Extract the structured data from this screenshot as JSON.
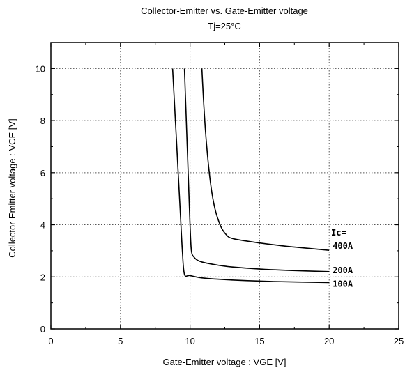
{
  "chart_data": {
    "type": "line",
    "title": "Collector-Emitter  vs.  Gate-Emitter  voltage",
    "subtitle": "Tj=25°C",
    "xlabel": "Gate-Emitter  voltage  :  VGE [V]",
    "ylabel": "Collector-Emitter  voltage  :  VCE [V]",
    "xlim": [
      0,
      25
    ],
    "ylim": [
      0,
      11
    ],
    "x_ticks": [
      "0",
      "5",
      "10",
      "15",
      "20",
      "25"
    ],
    "y_ticks": [
      "0",
      "2",
      "4",
      "6",
      "8",
      "10"
    ],
    "grid": true,
    "annotation": "Ic=",
    "series": [
      {
        "name": "100A",
        "x": [
          8.75,
          8.95,
          9.15,
          9.3,
          9.45,
          9.6,
          10.0,
          11.0,
          13.0,
          16.0,
          20.0
        ],
        "y": [
          10.0,
          8.0,
          6.0,
          4.5,
          3.0,
          2.1,
          2.05,
          1.95,
          1.88,
          1.82,
          1.78
        ]
      },
      {
        "name": "200A",
        "x": [
          9.6,
          9.7,
          9.8,
          9.9,
          10.0,
          10.1,
          10.3,
          10.6,
          11.0,
          12.0,
          13.0,
          15.0,
          17.0,
          20.0
        ],
        "y": [
          10.0,
          8.5,
          7.0,
          5.5,
          4.0,
          3.0,
          2.75,
          2.62,
          2.55,
          2.45,
          2.38,
          2.3,
          2.25,
          2.2
        ]
      },
      {
        "name": "400A",
        "x": [
          10.85,
          11.0,
          11.2,
          11.5,
          11.8,
          12.2,
          12.6,
          13.0,
          14.0,
          15.0,
          16.5,
          18.0,
          20.0
        ],
        "y": [
          10.0,
          8.5,
          7.0,
          5.5,
          4.6,
          3.95,
          3.62,
          3.48,
          3.38,
          3.3,
          3.2,
          3.12,
          3.02
        ]
      }
    ]
  }
}
